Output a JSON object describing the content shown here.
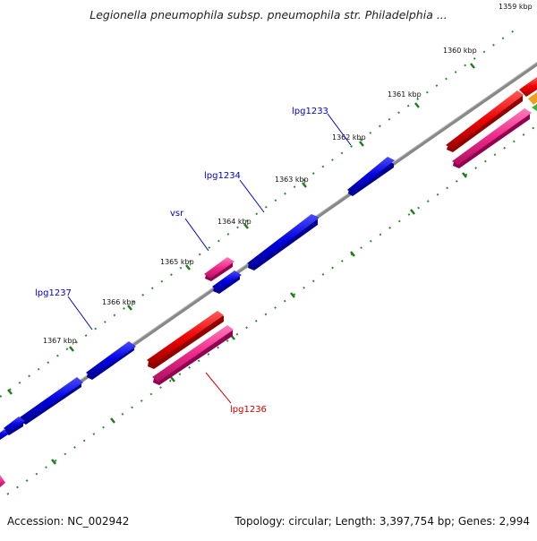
{
  "title": "Legionella pneumophila subsp. pneumophila str. Philadelphia ...",
  "footer": {
    "accession": "Accession: NC_002942",
    "summary": "Topology: circular; Length: 3,397,754 bp; Genes: 2,994"
  },
  "ticks": [
    "1359 kbp",
    "1360 kbp",
    "1361 kbp",
    "1362 kbp",
    "1363 kbp",
    "1364 kbp",
    "1365 kbp",
    "1366 kbp",
    "1367 kbp"
  ],
  "gene_labels": [
    {
      "name": "lpg1233",
      "color": "#0000cc"
    },
    {
      "name": "lpg1234",
      "color": "#0000cc"
    },
    {
      "name": "vsr",
      "color": "#0000cc"
    },
    {
      "name": "lpg1237",
      "color": "#0000cc"
    },
    {
      "name": "lpg1236",
      "color": "#cc0000"
    }
  ],
  "colors": {
    "backbone": "#808080",
    "tick_mark": "#2e8b2e",
    "forward_gene": "#0000ee",
    "reverse_gene": "#ee0000",
    "pink_feature": "#ee2a8a"
  }
}
